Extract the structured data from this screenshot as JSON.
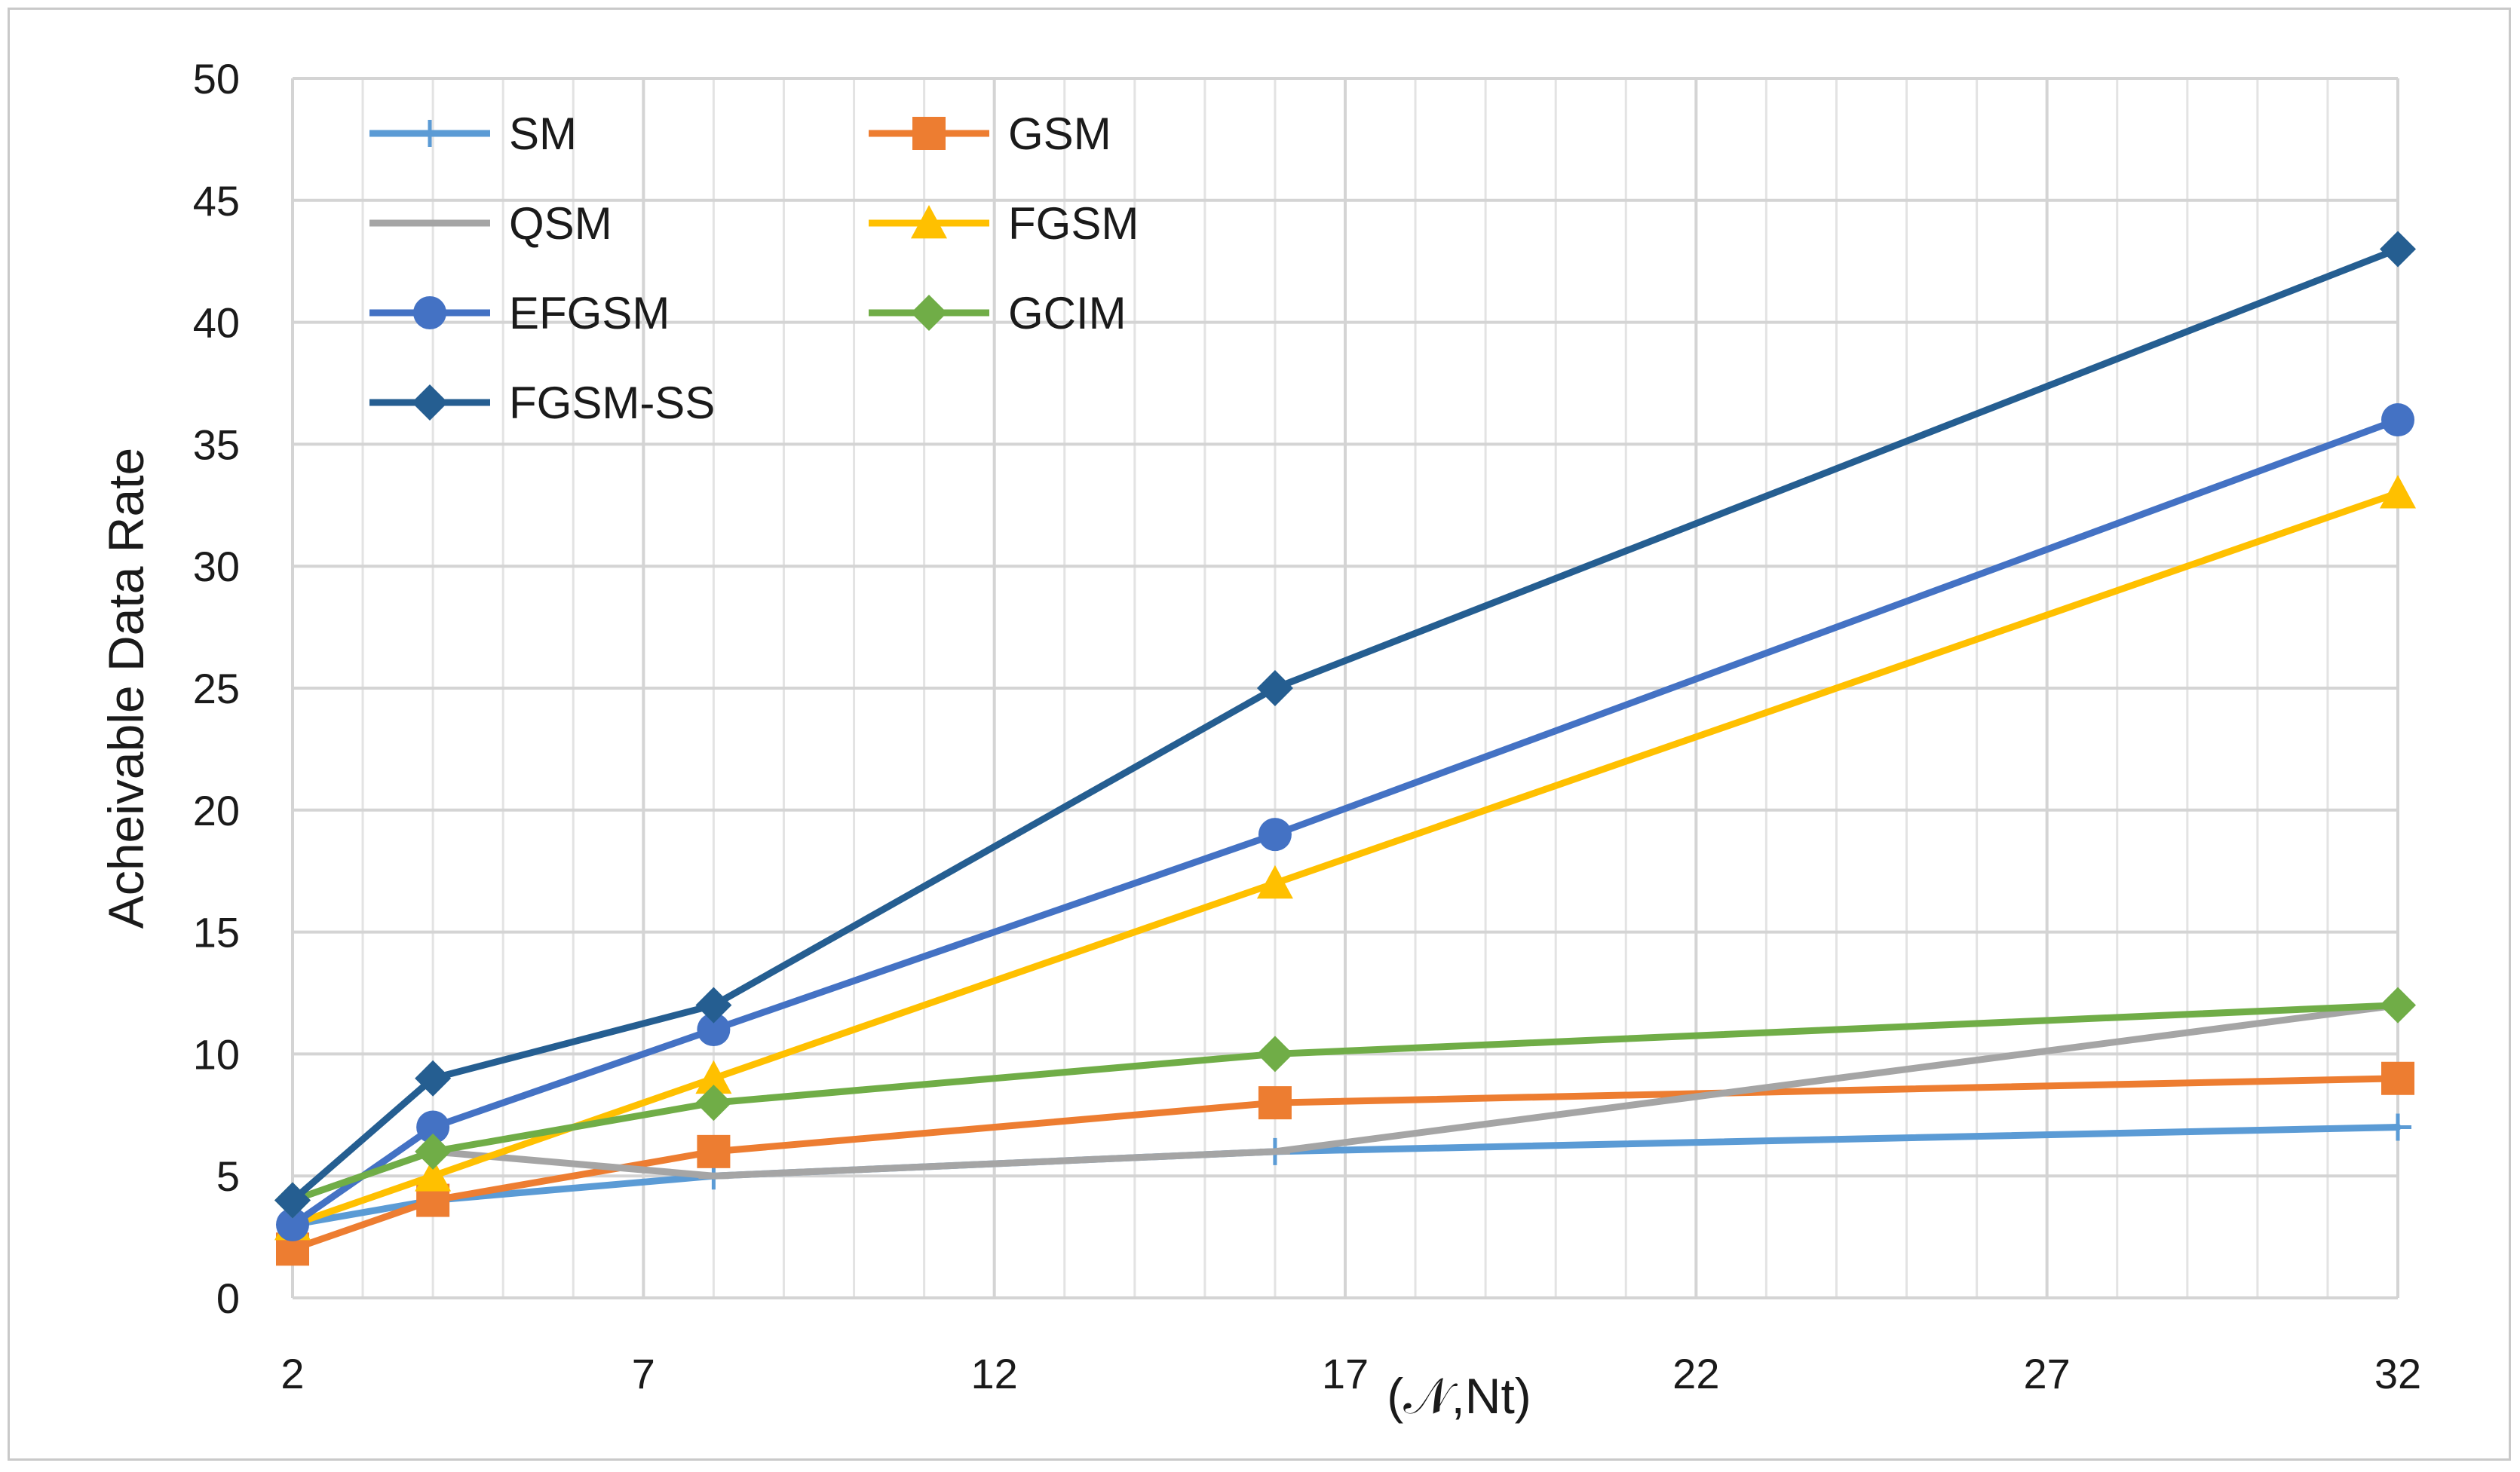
{
  "chart_data": {
    "type": "line",
    "title": "",
    "xlabel": "(𝒩,Nt)",
    "ylabel": "Acheivable Data Rate",
    "xlim": [
      2,
      32
    ],
    "ylim": [
      0,
      50
    ],
    "x_ticks": [
      2,
      7,
      12,
      17,
      22,
      27,
      32
    ],
    "y_ticks": [
      0,
      5,
      10,
      15,
      20,
      25,
      30,
      35,
      40,
      45,
      50
    ],
    "grid": true,
    "legend_position": "top-left",
    "x": [
      2,
      4,
      8,
      16,
      32
    ],
    "series": [
      {
        "name": "SM",
        "color": "#5B9BD5",
        "marker": "plus",
        "values": [
          3,
          4,
          5,
          6,
          7
        ]
      },
      {
        "name": "GSM",
        "color": "#ED7D31",
        "marker": "square",
        "values": [
          2,
          4,
          6,
          8,
          9
        ]
      },
      {
        "name": "QSM",
        "color": "#A5A5A5",
        "marker": "dash",
        "values": [
          4,
          6,
          5,
          6,
          12
        ]
      },
      {
        "name": "FGSM",
        "color": "#FFC000",
        "marker": "triangle",
        "values": [
          3,
          5,
          9,
          17,
          33
        ]
      },
      {
        "name": "EFGSM",
        "color": "#4472C4",
        "marker": "circle",
        "values": [
          3,
          7,
          11,
          19,
          36
        ]
      },
      {
        "name": "GCIM",
        "color": "#70AD47",
        "marker": "diamond",
        "values": [
          4,
          6,
          8,
          10,
          12
        ]
      },
      {
        "name": "FGSM-SS",
        "color": "#255E91",
        "marker": "diamond",
        "values": [
          4,
          9,
          12,
          25,
          43
        ]
      }
    ]
  }
}
